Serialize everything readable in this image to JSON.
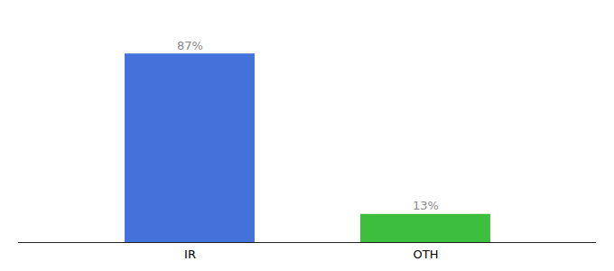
{
  "chart_data": {
    "type": "bar",
    "categories": [
      "IR",
      "OTH"
    ],
    "values": [
      87,
      13
    ],
    "value_labels": [
      "87%",
      "13%"
    ],
    "colors": [
      "#4472db",
      "#3dbf3d"
    ],
    "ylim": [
      0,
      100
    ],
    "data_labels": true,
    "tick_labels": "x",
    "grid": false
  }
}
